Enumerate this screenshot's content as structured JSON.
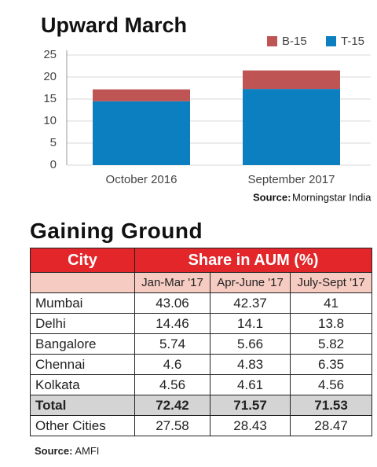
{
  "chart_data": {
    "type": "stacked-bar",
    "title": "Upward March",
    "categories": [
      "October 2016",
      "September 2017"
    ],
    "series": [
      {
        "name": "T-15",
        "color": "#0b7fc0",
        "values": [
          14.5,
          17.3
        ]
      },
      {
        "name": "B-15",
        "color": "#bf5454",
        "values": [
          2.7,
          4.2
        ]
      }
    ],
    "ylim": [
      0,
      25
    ],
    "yticks": [
      0,
      5,
      10,
      15,
      20,
      25
    ],
    "grid": true,
    "legend": "top-right",
    "source": {
      "label": "Source:",
      "text": "Morningstar India"
    }
  },
  "table": {
    "title": "Gaining Ground",
    "header": {
      "city": "City",
      "share": "Share in AUM (%)",
      "periods": [
        "Jan-Mar '17",
        "Apr-June '17",
        "July-Sept '17"
      ]
    },
    "rows": [
      [
        "Mumbai",
        "43.06",
        "42.37",
        "41"
      ],
      [
        "Delhi",
        "14.46",
        "14.1",
        "13.8"
      ],
      [
        "Bangalore",
        "5.74",
        "5.66",
        "5.82"
      ],
      [
        "Chennai",
        "4.6",
        "4.83",
        "6.35"
      ],
      [
        "Kolkata",
        "4.56",
        "4.61",
        "4.56"
      ]
    ],
    "total_row": [
      "Total",
      "72.42",
      "71.57",
      "71.53"
    ],
    "other_row": [
      "Other Cities",
      "27.58",
      "28.43",
      "28.47"
    ],
    "source": {
      "label": "Source:",
      "text": "AMFI"
    }
  }
}
